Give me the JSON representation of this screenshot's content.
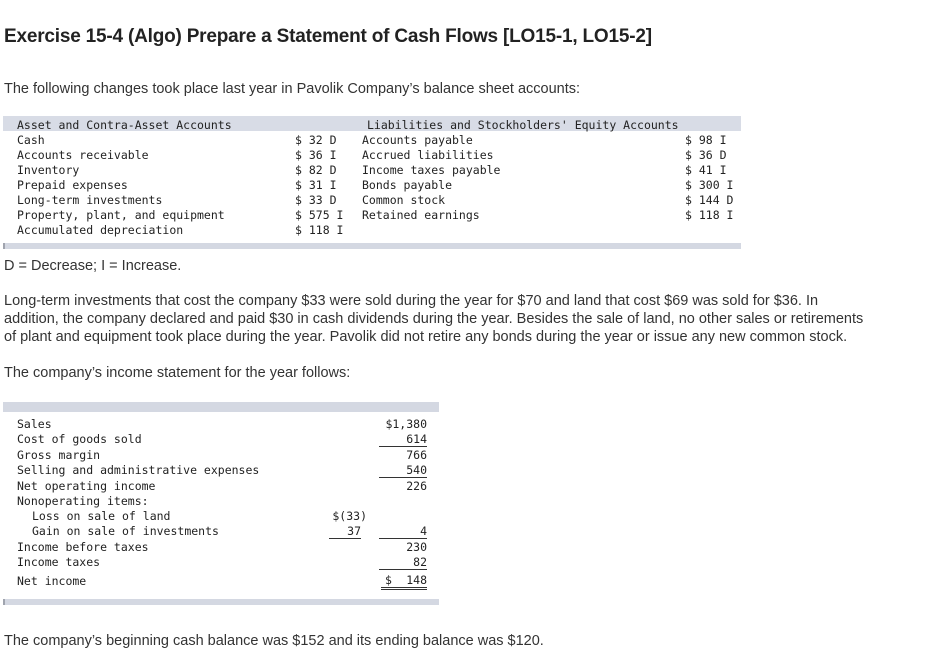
{
  "title": "Exercise 15-4 (Algo) Prepare a Statement of Cash Flows [LO15-1, LO15-2]",
  "intro": "The following changes took place last year in Pavolik Company’s balance sheet accounts:",
  "balance_sheet": {
    "left_header": "Asset and Contra-Asset Accounts",
    "right_header": "Liabilities and Stockholders' Equity Accounts",
    "left_rows": [
      {
        "name": "Cash",
        "amount": "$ 32 D"
      },
      {
        "name": "Accounts receivable",
        "amount": "$ 36 I"
      },
      {
        "name": "Inventory",
        "amount": "$ 82 D"
      },
      {
        "name": "Prepaid expenses",
        "amount": "$ 31 I"
      },
      {
        "name": "Long-term investments",
        "amount": "$ 33 D"
      },
      {
        "name": "Property, plant, and equipment",
        "amount": "$ 575 I"
      },
      {
        "name": "Accumulated depreciation",
        "amount": "$ 118 I"
      }
    ],
    "right_rows": [
      {
        "name": "Accounts payable",
        "amount": "$ 98 I"
      },
      {
        "name": "Accrued liabilities",
        "amount": "$ 36 D"
      },
      {
        "name": "Income taxes payable",
        "amount": "$ 41 I"
      },
      {
        "name": "Bonds payable",
        "amount": "$ 300 I"
      },
      {
        "name": "Common stock",
        "amount": "$ 144 D"
      },
      {
        "name": "Retained earnings",
        "amount": "$ 118 I"
      }
    ]
  },
  "legend": "D = Decrease; I = Increase.",
  "paragraph": [
    "Long-term investments that cost the company $33 were sold during the year for $70 and land that cost $69 was sold for $36. In",
    "addition, the company declared and paid $30 in cash dividends during the year. Besides the sale of land, no other sales or retirements",
    "of plant and equipment took place during the year. Pavolik did not retire any bonds during the year or issue any new common stock."
  ],
  "income_intro": "The company’s income statement for the year follows:",
  "income_statement": {
    "sales": {
      "label": "Sales",
      "amount": "$1,380"
    },
    "cogs": {
      "label": "Cost of goods sold",
      "amount": "614"
    },
    "gross_margin": {
      "label": "Gross margin",
      "amount": "766"
    },
    "sga": {
      "label": "Selling and administrative expenses",
      "amount": "540"
    },
    "net_operating": {
      "label": "Net operating income",
      "amount": "226"
    },
    "nonoperating": {
      "label": "Nonoperating items:"
    },
    "loss_land": {
      "label": "Loss on sale of land",
      "sub_amount": "$(33)"
    },
    "gain_inv": {
      "label": "Gain on sale of investments",
      "sub_amount": "37",
      "amount": "4"
    },
    "before_taxes": {
      "label": "Income before taxes",
      "amount": "230"
    },
    "taxes": {
      "label": "Income taxes",
      "amount": "82"
    },
    "net_income": {
      "label": "Net income",
      "dollar": "$",
      "amount": "148"
    }
  },
  "closing": "The company’s beginning cash balance was $152 and its ending balance was $120."
}
